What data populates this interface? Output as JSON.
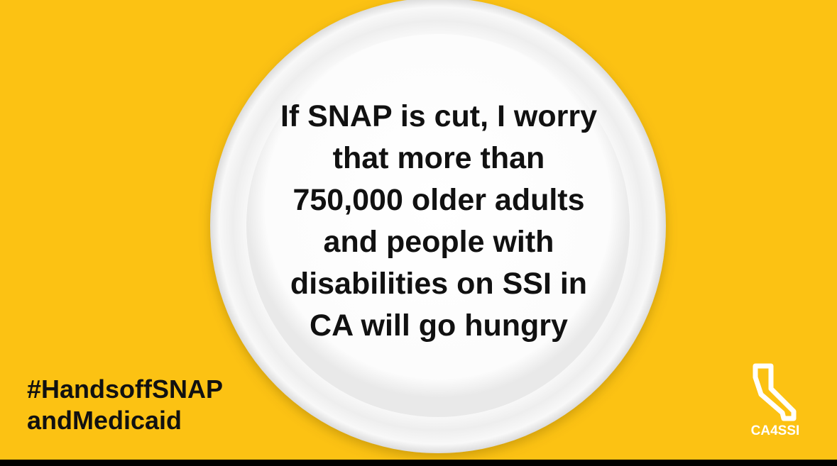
{
  "message": {
    "lines": [
      "If SNAP is cut, I worry",
      "that more than",
      "750,000 older adults",
      "and people with",
      "disabilities on SSI in",
      "CA will go hungry"
    ]
  },
  "hashtag": {
    "lines": [
      "#HandsoffSNAP",
      "andMedicaid"
    ]
  },
  "logo": {
    "text": "CA4SSI"
  }
}
